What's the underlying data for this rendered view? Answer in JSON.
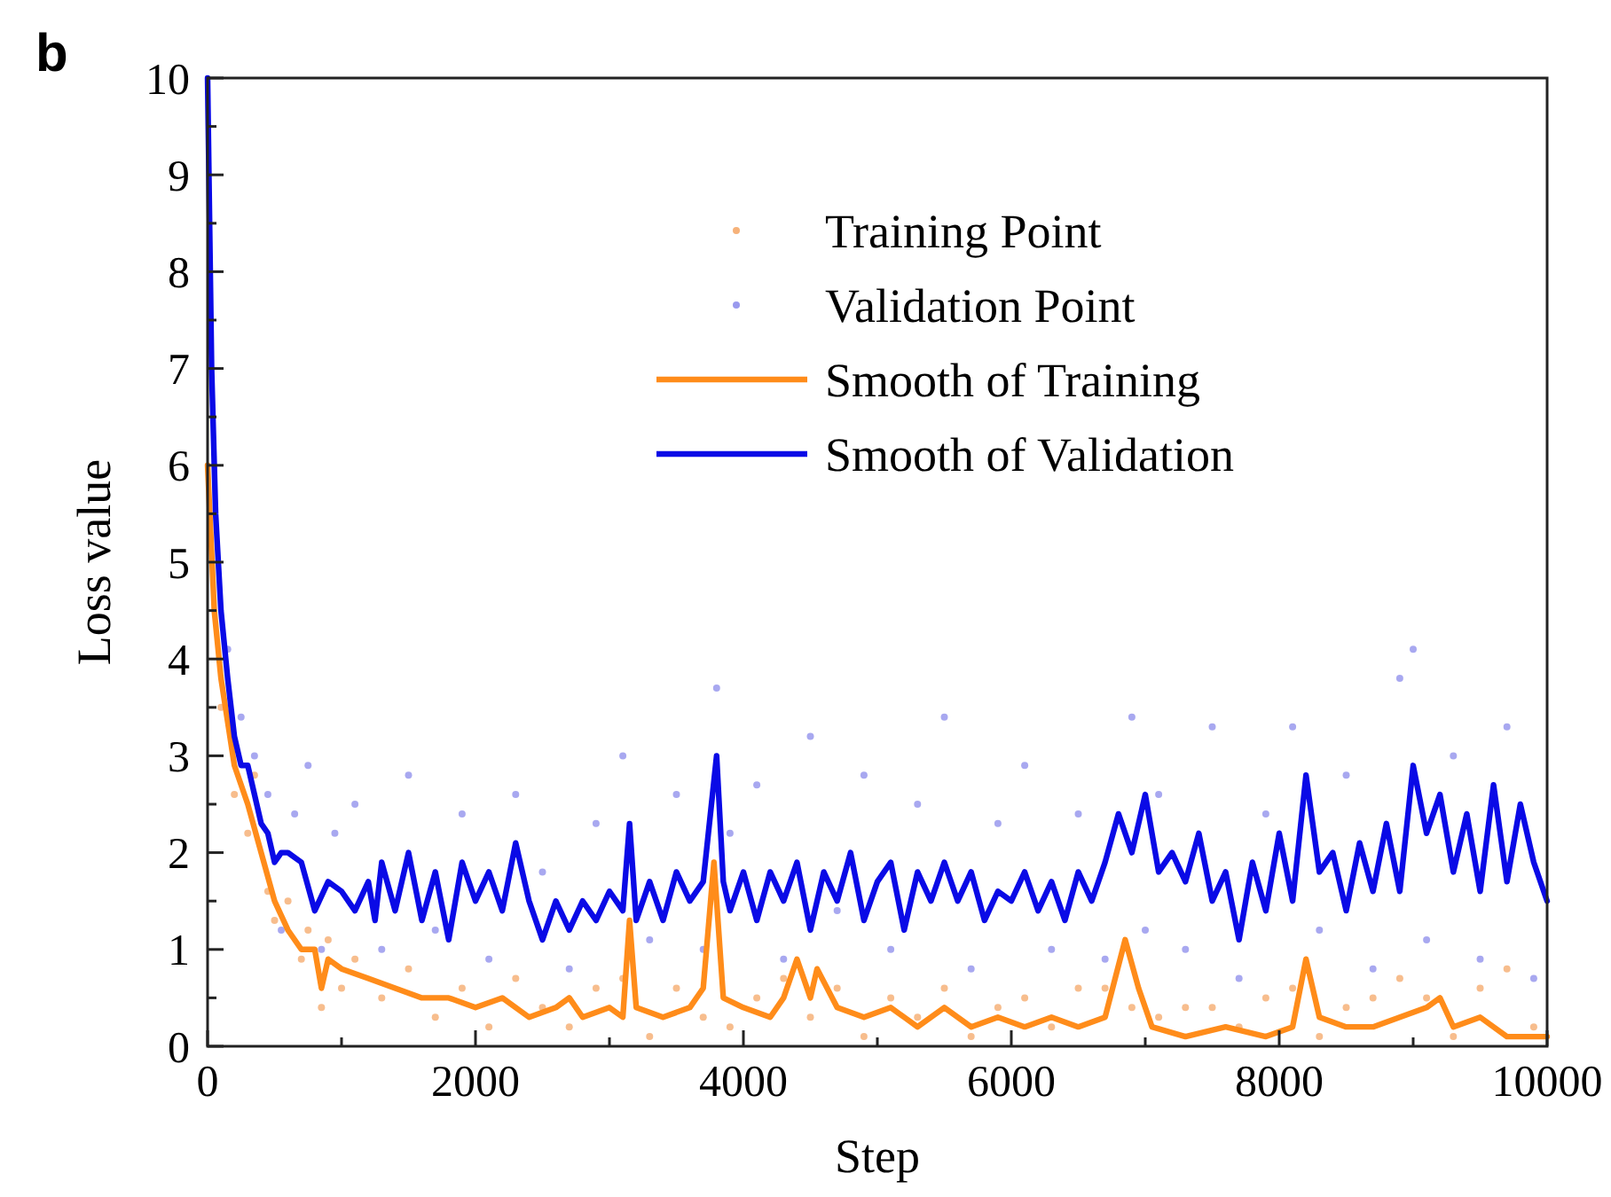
{
  "chart_data": {
    "type": "line",
    "xlabel": "Step",
    "ylabel": "Loss value",
    "annotations": [
      "b"
    ],
    "legend": "top right",
    "grid": false,
    "xlim": [
      0,
      10000
    ],
    "ylim": [
      0,
      10
    ],
    "xticks": [
      0,
      {
        "value": 1000,
        "label": null
      },
      2000,
      {
        "value": 3000,
        "label": null
      },
      4000,
      {
        "value": 5000,
        "label": null
      },
      6000,
      {
        "value": 7000,
        "label": null
      },
      8000,
      {
        "value": 9000,
        "label": null
      },
      10000
    ],
    "yticks": [
      0,
      {
        "value": 0.5,
        "label": null
      },
      1,
      {
        "value": 1.5,
        "label": null
      },
      2,
      {
        "value": 2.5,
        "label": null
      },
      3,
      {
        "value": 3.5,
        "label": null
      },
      4,
      {
        "value": 4.5,
        "label": null
      },
      5,
      {
        "value": 5.5,
        "label": null
      },
      6,
      {
        "value": 6.5,
        "label": null
      },
      7,
      {
        "value": 7.5,
        "label": null
      },
      8,
      {
        "value": 8.5,
        "label": null
      },
      9,
      {
        "value": 9.5,
        "label": null
      },
      10
    ],
    "series": [
      {
        "name": "Training Point",
        "type": "scatter",
        "marker": "circle",
        "color": "#f6b27a",
        "x": [
          100,
          200,
          300,
          350,
          450,
          500,
          600,
          700,
          750,
          850,
          900,
          1000,
          1100,
          1300,
          1500,
          1700,
          1900,
          2100,
          2300,
          2500,
          2700,
          2900,
          3100,
          3300,
          3500,
          3700,
          3900,
          4100,
          4300,
          4500,
          4700,
          4900,
          5100,
          5300,
          5500,
          5700,
          5900,
          6100,
          6300,
          6500,
          6700,
          6900,
          7100,
          7300,
          7500,
          7700,
          7900,
          8100,
          8300,
          8500,
          8700,
          8900,
          9100,
          9300,
          9500,
          9700,
          9900
        ],
        "values": [
          3.5,
          2.6,
          2.2,
          2.8,
          1.6,
          1.3,
          1.5,
          0.9,
          1.2,
          0.4,
          1.1,
          0.6,
          0.9,
          0.5,
          0.8,
          0.3,
          0.6,
          0.2,
          0.7,
          0.4,
          0.2,
          0.6,
          0.7,
          0.1,
          0.6,
          0.3,
          0.2,
          0.5,
          0.7,
          0.3,
          0.6,
          0.1,
          0.5,
          0.3,
          0.6,
          0.1,
          0.4,
          0.5,
          0.2,
          0.6,
          0.6,
          0.4,
          0.3,
          0.4,
          0.4,
          0.2,
          0.5,
          0.6,
          0.1,
          0.4,
          0.5,
          0.7,
          0.5,
          0.1,
          0.6,
          0.8,
          0.2
        ]
      },
      {
        "name": "Validation Point",
        "type": "scatter",
        "marker": "circle",
        "color": "#9a9aee",
        "x": [
          150,
          250,
          350,
          450,
          550,
          650,
          750,
          850,
          950,
          1100,
          1300,
          1500,
          1700,
          1900,
          2100,
          2300,
          2500,
          2700,
          2900,
          3100,
          3300,
          3500,
          3700,
          3800,
          3900,
          4100,
          4300,
          4500,
          4700,
          4900,
          5100,
          5300,
          5500,
          5700,
          5900,
          6100,
          6300,
          6500,
          6700,
          6900,
          7000,
          7100,
          7300,
          7500,
          7700,
          7900,
          8100,
          8300,
          8500,
          8700,
          8900,
          9000,
          9100,
          9300,
          9500,
          9700,
          9900
        ],
        "values": [
          4.1,
          3.4,
          3.0,
          2.6,
          1.2,
          2.4,
          2.9,
          1.0,
          2.2,
          2.5,
          1.0,
          2.8,
          1.2,
          2.4,
          0.9,
          2.6,
          1.8,
          0.8,
          2.3,
          3.0,
          1.1,
          2.6,
          1.0,
          3.7,
          2.2,
          2.7,
          0.9,
          3.2,
          1.4,
          2.8,
          1.0,
          2.5,
          3.4,
          0.8,
          2.3,
          2.9,
          1.0,
          2.4,
          0.9,
          3.4,
          1.2,
          2.6,
          1.0,
          3.3,
          0.7,
          2.4,
          3.3,
          1.2,
          2.8,
          0.8,
          3.8,
          4.1,
          1.1,
          3.0,
          0.9,
          3.3,
          0.7
        ]
      },
      {
        "name": "Smooth of Training",
        "marker": "none",
        "line_style": "solid",
        "color": "#ff8c1a",
        "x": [
          0,
          50,
          100,
          200,
          300,
          400,
          500,
          600,
          700,
          800,
          850,
          900,
          1000,
          1200,
          1400,
          1600,
          1800,
          2000,
          2200,
          2400,
          2600,
          2700,
          2800,
          3000,
          3100,
          3150,
          3200,
          3400,
          3600,
          3700,
          3780,
          3850,
          4000,
          4200,
          4300,
          4400,
          4500,
          4550,
          4700,
          4900,
          5100,
          5300,
          5500,
          5700,
          5900,
          6100,
          6300,
          6500,
          6700,
          6850,
          6950,
          7050,
          7300,
          7600,
          7900,
          8100,
          8200,
          8300,
          8500,
          8700,
          8900,
          9100,
          9200,
          9300,
          9500,
          9700,
          9900,
          10000
        ],
        "values": [
          6,
          4.5,
          3.8,
          2.9,
          2.5,
          2,
          1.5,
          1.2,
          1,
          1,
          0.6,
          0.9,
          0.8,
          0.7,
          0.6,
          0.5,
          0.5,
          0.4,
          0.5,
          0.3,
          0.4,
          0.5,
          0.3,
          0.4,
          0.3,
          1.3,
          0.4,
          0.3,
          0.4,
          0.6,
          1.9,
          0.5,
          0.4,
          0.3,
          0.5,
          0.9,
          0.5,
          0.8,
          0.4,
          0.3,
          0.4,
          0.2,
          0.4,
          0.2,
          0.3,
          0.2,
          0.3,
          0.2,
          0.3,
          1.1,
          0.6,
          0.2,
          0.1,
          0.2,
          0.1,
          0.2,
          0.9,
          0.3,
          0.2,
          0.2,
          0.3,
          0.4,
          0.5,
          0.2,
          0.3,
          0.1,
          0.1,
          0.1
        ]
      },
      {
        "name": "Smooth of Validation",
        "marker": "none",
        "line_style": "solid",
        "color": "#0a0ae6",
        "x": [
          0,
          30,
          60,
          100,
          150,
          200,
          250,
          300,
          350,
          400,
          450,
          500,
          550,
          600,
          700,
          800,
          900,
          1000,
          1100,
          1200,
          1250,
          1300,
          1400,
          1500,
          1600,
          1700,
          1800,
          1900,
          2000,
          2100,
          2200,
          2300,
          2400,
          2500,
          2600,
          2700,
          2800,
          2900,
          3000,
          3100,
          3150,
          3200,
          3300,
          3400,
          3500,
          3600,
          3700,
          3800,
          3850,
          3900,
          4000,
          4100,
          4200,
          4300,
          4400,
          4500,
          4600,
          4700,
          4800,
          4900,
          5000,
          5100,
          5200,
          5300,
          5400,
          5500,
          5600,
          5700,
          5800,
          5900,
          6000,
          6100,
          6200,
          6300,
          6400,
          6500,
          6600,
          6700,
          6800,
          6900,
          7000,
          7100,
          7200,
          7300,
          7400,
          7500,
          7600,
          7700,
          7800,
          7900,
          8000,
          8100,
          8200,
          8300,
          8400,
          8500,
          8600,
          8700,
          8800,
          8900,
          9000,
          9100,
          9200,
          9300,
          9400,
          9500,
          9600,
          9700,
          9800,
          9900,
          10000
        ],
        "values": [
          10,
          7,
          5.5,
          4.5,
          3.8,
          3.2,
          2.9,
          2.9,
          2.6,
          2.3,
          2.2,
          1.9,
          2,
          2,
          1.9,
          1.4,
          1.7,
          1.6,
          1.4,
          1.7,
          1.3,
          1.9,
          1.4,
          2,
          1.3,
          1.8,
          1.1,
          1.9,
          1.5,
          1.8,
          1.4,
          2.1,
          1.5,
          1.1,
          1.5,
          1.2,
          1.5,
          1.3,
          1.6,
          1.4,
          2.3,
          1.3,
          1.7,
          1.3,
          1.8,
          1.5,
          1.7,
          3,
          1.7,
          1.4,
          1.8,
          1.3,
          1.8,
          1.5,
          1.9,
          1.2,
          1.8,
          1.5,
          2,
          1.3,
          1.7,
          1.9,
          1.2,
          1.8,
          1.5,
          1.9,
          1.5,
          1.8,
          1.3,
          1.6,
          1.5,
          1.8,
          1.4,
          1.7,
          1.3,
          1.8,
          1.5,
          1.9,
          2.4,
          2,
          2.6,
          1.8,
          2,
          1.7,
          2.2,
          1.5,
          1.8,
          1.1,
          1.9,
          1.4,
          2.2,
          1.5,
          2.8,
          1.8,
          2,
          1.4,
          2.1,
          1.6,
          2.3,
          1.6,
          2.9,
          2.2,
          2.6,
          1.8,
          2.4,
          1.6,
          2.7,
          1.7,
          2.5,
          1.9,
          1.5
        ]
      }
    ]
  }
}
